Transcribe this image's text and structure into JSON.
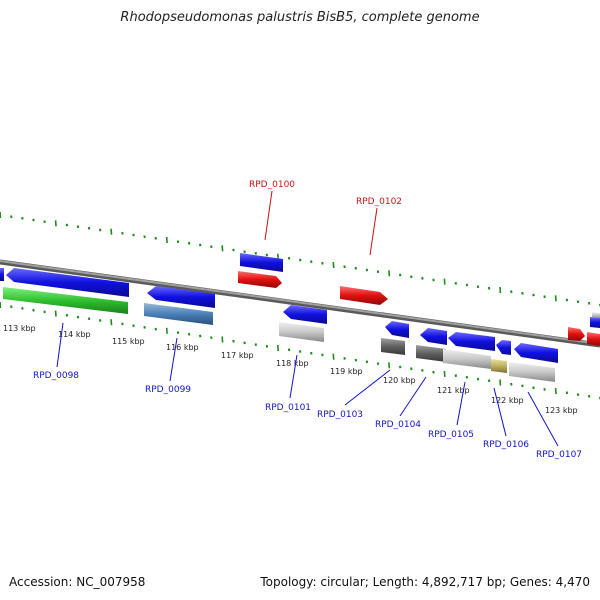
{
  "title": "Rhodopseudomonas palustris BisB5, complete genome",
  "footer": {
    "accession": "Accession: NC_007958",
    "topology": "Topology: circular; Length: 4,892,717 bp; Genes: 4,470"
  },
  "colors": {
    "forward_gene": "#1414e6",
    "forward_gene_alt": "#e61414",
    "label_blue": "#1414c8",
    "label_red": "#c81414",
    "backbone": "#808080",
    "tick": "#1e8c1e"
  },
  "ticks": [
    {
      "label": "113 kbp"
    },
    {
      "label": "114 kbp"
    },
    {
      "label": "115 kbp"
    },
    {
      "label": "116 kbp"
    },
    {
      "label": "117 kbp"
    },
    {
      "label": "118 kbp"
    },
    {
      "label": "119 kbp"
    },
    {
      "label": "120 kbp"
    },
    {
      "label": "121 kbp"
    },
    {
      "label": "122 kbp"
    },
    {
      "label": "123 kbp"
    }
  ],
  "gene_labels": [
    {
      "name": "RPD_0098",
      "color": "blue"
    },
    {
      "name": "RPD_0099",
      "color": "blue"
    },
    {
      "name": "RPD_0100",
      "color": "red"
    },
    {
      "name": "RPD_0101",
      "color": "blue"
    },
    {
      "name": "RPD_0102",
      "color": "red"
    },
    {
      "name": "RPD_0103",
      "color": "blue"
    },
    {
      "name": "RPD_0104",
      "color": "blue"
    },
    {
      "name": "RPD_0105",
      "color": "blue"
    },
    {
      "name": "RPD_0106",
      "color": "blue"
    },
    {
      "name": "RPD_0107",
      "color": "blue"
    }
  ]
}
